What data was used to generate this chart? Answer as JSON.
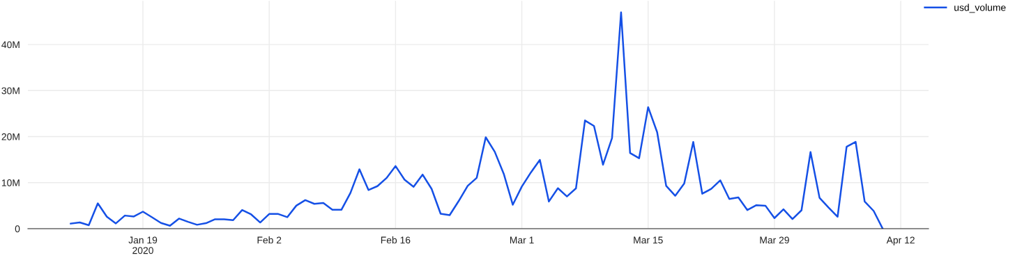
{
  "chart_data": {
    "type": "line",
    "x": [
      "2020-01-11",
      "2020-01-12",
      "2020-01-13",
      "2020-01-14",
      "2020-01-15",
      "2020-01-16",
      "2020-01-17",
      "2020-01-18",
      "2020-01-19",
      "2020-01-20",
      "2020-01-21",
      "2020-01-22",
      "2020-01-23",
      "2020-01-24",
      "2020-01-25",
      "2020-01-26",
      "2020-01-27",
      "2020-01-28",
      "2020-01-29",
      "2020-01-30",
      "2020-01-31",
      "2020-02-01",
      "2020-02-02",
      "2020-02-03",
      "2020-02-04",
      "2020-02-05",
      "2020-02-06",
      "2020-02-07",
      "2020-02-08",
      "2020-02-09",
      "2020-02-10",
      "2020-02-11",
      "2020-02-12",
      "2020-02-13",
      "2020-02-14",
      "2020-02-15",
      "2020-02-16",
      "2020-02-17",
      "2020-02-18",
      "2020-02-19",
      "2020-02-20",
      "2020-02-21",
      "2020-02-22",
      "2020-02-23",
      "2020-02-24",
      "2020-02-25",
      "2020-02-26",
      "2020-02-27",
      "2020-02-28",
      "2020-02-29",
      "2020-03-01",
      "2020-03-02",
      "2020-03-03",
      "2020-03-04",
      "2020-03-05",
      "2020-03-06",
      "2020-03-07",
      "2020-03-08",
      "2020-03-09",
      "2020-03-10",
      "2020-03-11",
      "2020-03-12",
      "2020-03-13",
      "2020-03-14",
      "2020-03-15",
      "2020-03-16",
      "2020-03-17",
      "2020-03-18",
      "2020-03-19",
      "2020-03-20",
      "2020-03-21",
      "2020-03-22",
      "2020-03-23",
      "2020-03-24",
      "2020-03-25",
      "2020-03-26",
      "2020-03-27",
      "2020-03-28",
      "2020-03-29",
      "2020-03-30",
      "2020-03-31",
      "2020-04-01",
      "2020-04-02",
      "2020-04-03",
      "2020-04-04",
      "2020-04-05",
      "2020-04-06",
      "2020-04-07",
      "2020-04-08",
      "2020-04-09",
      "2020-04-10"
    ],
    "series": [
      {
        "name": "usd_volume",
        "color": "#1550e6",
        "values": [
          1.1,
          1.35,
          0.75,
          5.5,
          2.6,
          1.15,
          2.85,
          2.65,
          3.7,
          2.5,
          1.25,
          0.65,
          2.2,
          1.5,
          0.85,
          1.2,
          2.05,
          2.05,
          1.85,
          4.05,
          3.1,
          1.35,
          3.2,
          3.2,
          2.5,
          5.0,
          6.2,
          5.4,
          5.6,
          4.1,
          4.1,
          7.75,
          12.9,
          8.4,
          9.25,
          11.0,
          13.6,
          10.65,
          9.1,
          11.75,
          8.65,
          3.25,
          2.95,
          6.0,
          9.3,
          11.05,
          19.85,
          16.7,
          11.9,
          5.2,
          9.15,
          12.2,
          14.95,
          5.9,
          8.8,
          7.0,
          8.75,
          23.5,
          22.3,
          13.9,
          19.7,
          47.0,
          16.45,
          15.3,
          26.4,
          20.95,
          9.3,
          7.15,
          9.8,
          18.85,
          7.6,
          8.65,
          10.5,
          6.45,
          6.8,
          4.05,
          5.1,
          5.0,
          2.3,
          4.2,
          2.1,
          4.0,
          16.65,
          6.7,
          4.6,
          2.6,
          17.8,
          18.85,
          5.9,
          3.85,
          0
        ]
      }
    ],
    "xlim": [
      "2020-01-06T06:00",
      "2020-04-15T02:00"
    ],
    "xticks": [
      {
        "value": "2020-01-19",
        "label": "Jan 19\n2020"
      },
      {
        "value": "2020-02-02",
        "label": "Feb 2"
      },
      {
        "value": "2020-02-16",
        "label": "Feb 16"
      },
      {
        "value": "2020-03-01",
        "label": "Mar 1"
      },
      {
        "value": "2020-03-15",
        "label": "Mar 15"
      },
      {
        "value": "2020-03-29",
        "label": "Mar 29"
      },
      {
        "value": "2020-04-12",
        "label": "Apr 12"
      }
    ],
    "ylim": [
      0,
      49.5
    ],
    "yticks": [
      0,
      {
        "value": 10,
        "label": "10M"
      },
      {
        "value": 20,
        "label": "20M"
      },
      {
        "value": 30,
        "label": "30M"
      },
      {
        "value": 40,
        "label": "40M"
      }
    ],
    "grid": true,
    "legend": "top right",
    "marker": "none",
    "line_style": "solid"
  }
}
